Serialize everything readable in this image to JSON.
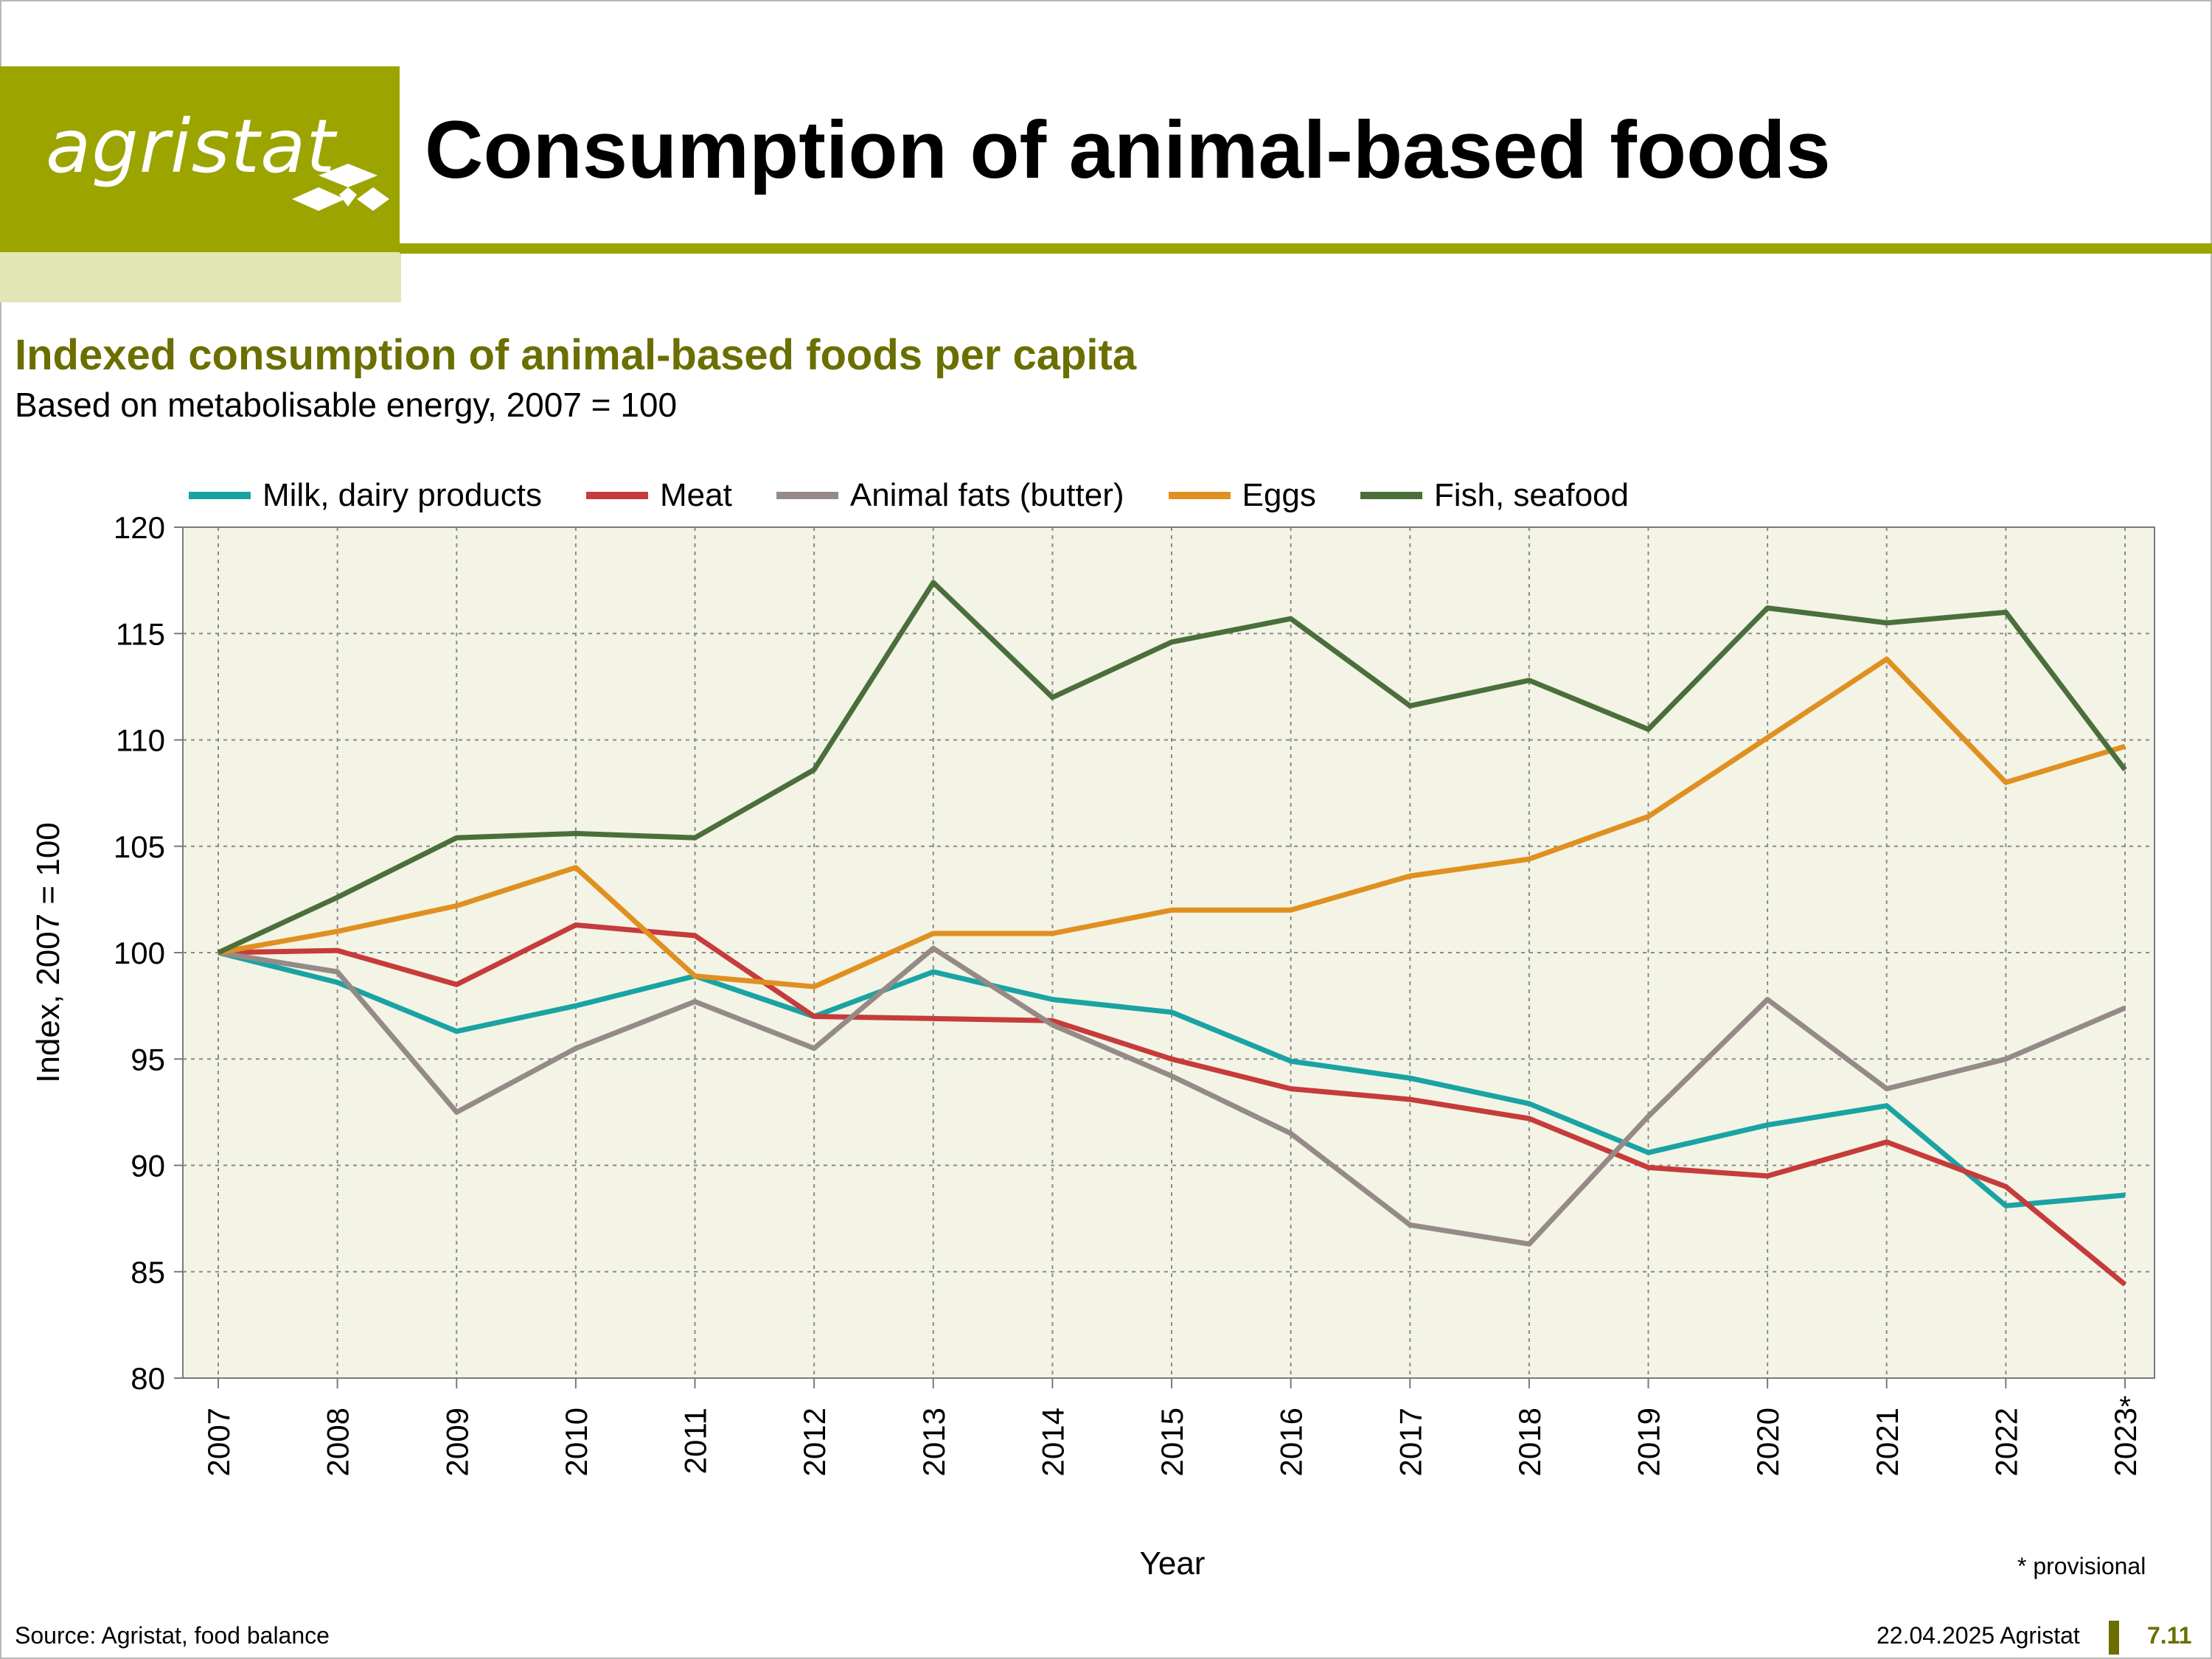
{
  "header": {
    "logo_text": "agristat",
    "title": "Consumption of animal-based foods"
  },
  "colors": {
    "brand_green": "#9ca400",
    "brand_pale": "#e2e6b4",
    "subtitle_olive": "#6b6f00",
    "plot_background": "#f3f4e5"
  },
  "chart_data": {
    "type": "line",
    "title": "Indexed consumption of animal-based foods per capita",
    "subtitle": "Based on metabolisable energy, 2007 = 100",
    "xlabel": "Year",
    "ylabel": "Index, 2007 = 100",
    "ylim": [
      80,
      120
    ],
    "yticks": [
      80,
      85,
      90,
      95,
      100,
      105,
      110,
      115,
      120
    ],
    "x": [
      "2007",
      "2008",
      "2009",
      "2010",
      "2011",
      "2012",
      "2013",
      "2014",
      "2015",
      "2016",
      "2017",
      "2018",
      "2019",
      "2020",
      "2021",
      "2022",
      "2023"
    ],
    "x_marker": "*",
    "grid": true,
    "legend_position": "top",
    "series": [
      {
        "name": "Milk, dairy products",
        "color": "#1aa3a3",
        "values": [
          100,
          98.6,
          96.3,
          97.5,
          98.9,
          97.0,
          99.1,
          97.8,
          97.2,
          94.9,
          94.1,
          92.9,
          90.6,
          91.9,
          92.8,
          88.1,
          88.6
        ]
      },
      {
        "name": "Meat",
        "color": "#c63b3b",
        "values": [
          100,
          100.1,
          98.5,
          101.3,
          100.8,
          97.0,
          96.9,
          96.8,
          95.0,
          93.6,
          93.1,
          92.2,
          89.9,
          89.5,
          91.1,
          89.0,
          84.4
        ]
      },
      {
        "name": "Animal fats (butter)",
        "color": "#968a88",
        "values": [
          100,
          99.1,
          92.5,
          95.5,
          97.7,
          95.5,
          100.2,
          96.6,
          94.2,
          91.5,
          87.2,
          86.3,
          92.3,
          97.8,
          93.6,
          95.0,
          97.4
        ]
      },
      {
        "name": "Eggs",
        "color": "#e09020",
        "values": [
          100,
          101.0,
          102.2,
          104.0,
          98.9,
          98.4,
          100.9,
          100.9,
          102.0,
          102.0,
          103.6,
          104.4,
          106.4,
          110.1,
          113.8,
          108.0,
          109.7
        ]
      },
      {
        "name": "Fish, seafood",
        "color": "#4a6f3b",
        "values": [
          100,
          102.6,
          105.4,
          105.6,
          105.4,
          108.6,
          117.4,
          112.0,
          114.6,
          115.7,
          111.6,
          112.8,
          110.5,
          116.2,
          115.5,
          116.0,
          108.6
        ]
      }
    ]
  },
  "footnote": "* provisional",
  "footer": {
    "source": "Source: Agristat, food balance",
    "date": "22.04.2025 Agristat",
    "page": "7.11"
  }
}
